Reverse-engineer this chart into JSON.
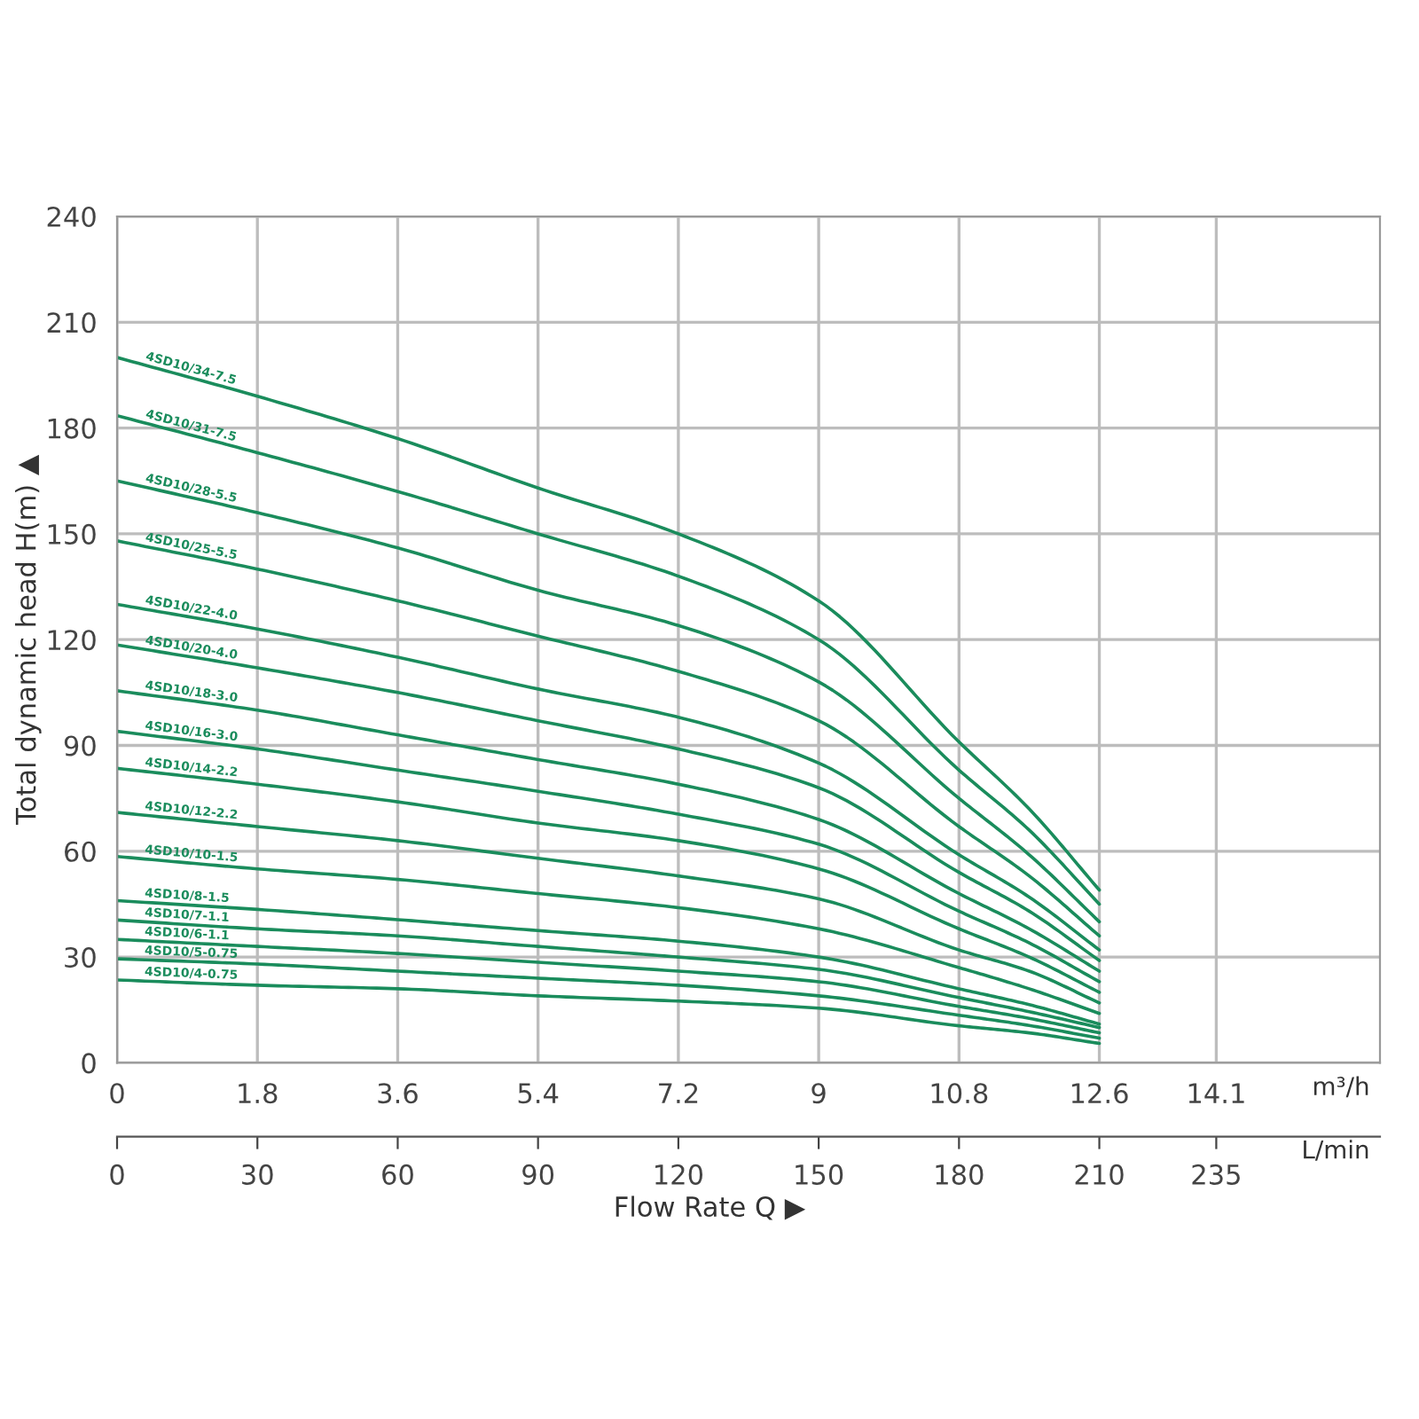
{
  "chart_data": {
    "type": "line",
    "ylabel": "Total dynamic head H(m) ▲",
    "xlabel": "m³/h",
    "x2label": "L/min",
    "annotations": [
      "Flow Rate Q ▶"
    ],
    "x": [
      0,
      1.8,
      3.6,
      5.4,
      7.2,
      9,
      10.8,
      11.7,
      12.6
    ],
    "xlim": [
      0,
      16.2
    ],
    "xticks": [
      0,
      1.8,
      3.6,
      5.4,
      7.2,
      9,
      10.8,
      12.6,
      14.1
    ],
    "x2lim": [
      0,
      270
    ],
    "x2ticks": [
      0,
      30,
      60,
      90,
      120,
      150,
      180,
      210,
      235
    ],
    "ylim": [
      0,
      240
    ],
    "yticks": [
      0,
      30,
      60,
      90,
      120,
      150,
      180,
      210,
      240
    ],
    "grid": true,
    "series": [
      {
        "name": "4SD10/34-7.5",
        "color": "#1a8c5c",
        "values": [
          200,
          189,
          177,
          163,
          150,
          131,
          91,
          72,
          49
        ]
      },
      {
        "name": "4SD10/31-7.5",
        "color": "#1a8c5c",
        "values": [
          183.5,
          173,
          162,
          150,
          138,
          120,
          83,
          66,
          45
        ]
      },
      {
        "name": "4SD10/28-5.5",
        "color": "#1a8c5c",
        "values": [
          165,
          156,
          146,
          134,
          124,
          108,
          75,
          59,
          40
        ]
      },
      {
        "name": "4SD10/25-5.5",
        "color": "#1a8c5c",
        "values": [
          148,
          140,
          131,
          121,
          111,
          97,
          67,
          53,
          36
        ]
      },
      {
        "name": "4SD10/22-4.0",
        "color": "#1a8c5c",
        "values": [
          130,
          123,
          115,
          106,
          98,
          85,
          59,
          47,
          32
        ]
      },
      {
        "name": "4SD10/20-4.0",
        "color": "#1a8c5c",
        "values": [
          118.5,
          112,
          105,
          97,
          89,
          78,
          54,
          43,
          29
        ]
      },
      {
        "name": "4SD10/18-3.0",
        "color": "#1a8c5c",
        "values": [
          105.5,
          100,
          93,
          86,
          79,
          69,
          48,
          38,
          26
        ]
      },
      {
        "name": "4SD10/16-3.0",
        "color": "#1a8c5c",
        "values": [
          94,
          89,
          83,
          77,
          70.5,
          62,
          43,
          34,
          23
        ]
      },
      {
        "name": "4SD10/14-2.2",
        "color": "#1a8c5c",
        "values": [
          83.5,
          79,
          74,
          68,
          63,
          55,
          38,
          30,
          20
        ]
      },
      {
        "name": "4SD10/12-2.2",
        "color": "#1a8c5c",
        "values": [
          71,
          67,
          63,
          58,
          53,
          46.5,
          32,
          26,
          17
        ]
      },
      {
        "name": "4SD10/10-1.5",
        "color": "#1a8c5c",
        "values": [
          58.5,
          55,
          52,
          48,
          44,
          38,
          27,
          21,
          14
        ]
      },
      {
        "name": "4SD10/8-1.5",
        "color": "#1a8c5c",
        "values": [
          46,
          43.5,
          40.6,
          37.5,
          34.5,
          30,
          21,
          16.5,
          11
        ]
      },
      {
        "name": "4SD10/7-1.1",
        "color": "#1a8c5c",
        "values": [
          40.5,
          38,
          36,
          33,
          30,
          26.5,
          18.5,
          14.5,
          10
        ]
      },
      {
        "name": "4SD10/6-1.1",
        "color": "#1a8c5c",
        "values": [
          35,
          33,
          31,
          28.5,
          26,
          23,
          16,
          12.6,
          8.5
        ]
      },
      {
        "name": "4SD10/5-0.75",
        "color": "#1a8c5c",
        "values": [
          29.5,
          28,
          26,
          24,
          22,
          19,
          13.5,
          10.6,
          7
        ]
      },
      {
        "name": "4SD10/4-0.75",
        "color": "#1a8c5c",
        "values": [
          23.5,
          22,
          21,
          19,
          17.5,
          15.5,
          10.5,
          8.5,
          5.5
        ]
      }
    ]
  }
}
